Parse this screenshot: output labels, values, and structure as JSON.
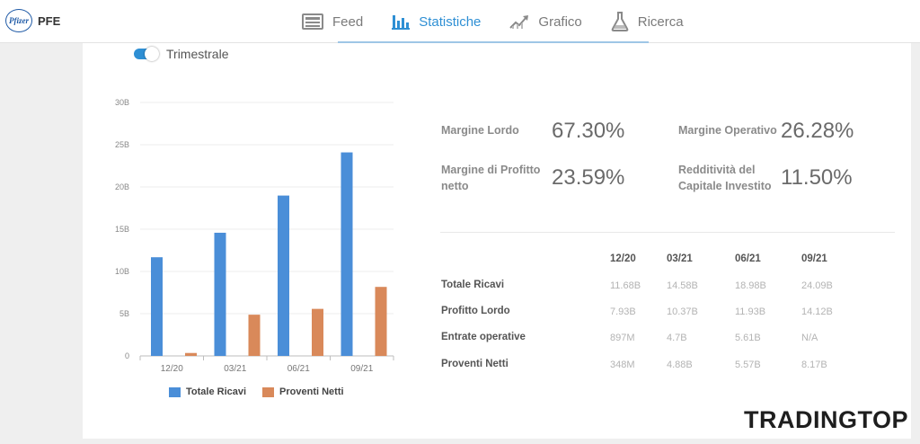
{
  "header": {
    "brand_logo_text": "Pfizer",
    "ticker": "PFE",
    "tabs": [
      {
        "label": "Feed",
        "icon": "news-icon",
        "active": false
      },
      {
        "label": "Statistiche",
        "icon": "bar-chart-icon",
        "active": true
      },
      {
        "label": "Grafico",
        "icon": "trend-chart-icon",
        "active": false
      },
      {
        "label": "Ricerca",
        "icon": "flask-icon",
        "active": false
      }
    ]
  },
  "toggle": {
    "label": "Trimestrale",
    "on": true
  },
  "chart_data": {
    "type": "bar",
    "categories": [
      "12/20",
      "03/21",
      "06/21",
      "09/21"
    ],
    "series": [
      {
        "name": "Totale Ricavi",
        "color": "#4a8ed8",
        "values": [
          11.68,
          14.58,
          18.98,
          24.09
        ]
      },
      {
        "name": "Proventi Netti",
        "color": "#d9895a",
        "values": [
          0.348,
          4.88,
          5.57,
          8.17
        ]
      }
    ],
    "yticks": [
      "0",
      "5B",
      "10B",
      "15B",
      "20B",
      "25B",
      "30B"
    ],
    "ylim": [
      0,
      30
    ],
    "grid": true,
    "legend": "bottom"
  },
  "metrics": [
    {
      "label": "Margine Lordo",
      "value": "67.30%"
    },
    {
      "label": "Margine Operativo",
      "value": "26.28%"
    },
    {
      "label": "Margine di Profitto netto",
      "value": "23.59%"
    },
    {
      "label": "Redditività del Capitale Investito",
      "value": "11.50%"
    }
  ],
  "table": {
    "columns": [
      "12/20",
      "03/21",
      "06/21",
      "09/21"
    ],
    "rows": [
      {
        "label": "Totale Ricavi",
        "cells": [
          "11.68B",
          "14.58B",
          "18.98B",
          "24.09B"
        ]
      },
      {
        "label": "Profitto Lordo",
        "cells": [
          "7.93B",
          "10.37B",
          "11.93B",
          "14.12B"
        ]
      },
      {
        "label": "Entrate operative",
        "cells": [
          "897M",
          "4.7B",
          "5.61B",
          "N/A"
        ]
      },
      {
        "label": "Proventi Netti",
        "cells": [
          "348M",
          "4.88B",
          "5.57B",
          "8.17B"
        ]
      }
    ]
  },
  "watermark": {
    "text_start": "TRADING",
    "text_end": "TOP"
  }
}
